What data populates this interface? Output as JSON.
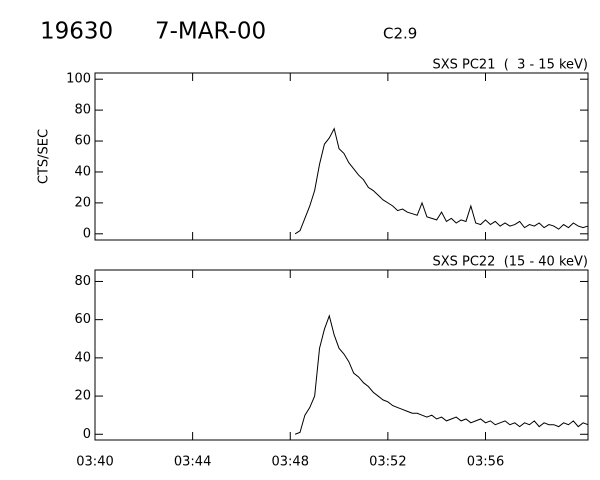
{
  "header": {
    "id": "19630",
    "date": "7-MAR-00",
    "class": "C2.9"
  },
  "chart_data": [
    {
      "type": "line",
      "title": "SXS PC21  (  3 - 15 keV)",
      "y_label": "CTS/SEC",
      "color": "#000000",
      "x": [
        48.2,
        48.4,
        48.6,
        48.8,
        49,
        49.2,
        49.4,
        49.6,
        49.8,
        50,
        50.2,
        50.4,
        50.6,
        50.8,
        51,
        51.2,
        51.4,
        51.6,
        51.8,
        52,
        52.2,
        52.4,
        52.6,
        52.8,
        53,
        53.2,
        53.4,
        53.6,
        53.8,
        54,
        54.2,
        54.4,
        54.6,
        54.8,
        55,
        55.2,
        55.4,
        55.6,
        55.8,
        56,
        56.2,
        56.4,
        56.6,
        56.8,
        57,
        57.2,
        57.4,
        57.6,
        57.8,
        58,
        58.2,
        58.4,
        58.6,
        58.8,
        59,
        59.2,
        59.4,
        59.6,
        59.8,
        60,
        60.2
      ],
      "values": [
        0,
        2,
        10,
        18,
        28,
        45,
        58,
        62,
        68,
        55,
        52,
        46,
        42,
        38,
        35,
        30,
        28,
        25,
        22,
        20,
        18,
        15,
        16,
        14,
        13,
        12,
        20,
        11,
        10,
        9,
        14,
        8,
        10,
        7,
        9,
        8,
        18,
        7,
        6,
        9,
        6,
        8,
        5,
        7,
        5,
        6,
        8,
        4,
        6,
        5,
        7,
        4,
        6,
        5,
        3,
        6,
        4,
        7,
        5,
        4,
        5
      ],
      "xlim": [
        40,
        60.2
      ],
      "ylim": [
        -4,
        104
      ],
      "yticks": [
        0,
        20,
        40,
        60,
        80,
        100
      ]
    },
    {
      "type": "line",
      "title": "SXS PC22  (15 - 40 keV)",
      "color": "#000000",
      "x": [
        48.2,
        48.4,
        48.6,
        48.8,
        49,
        49.2,
        49.4,
        49.6,
        49.8,
        50,
        50.2,
        50.4,
        50.6,
        50.8,
        51,
        51.2,
        51.4,
        51.6,
        51.8,
        52,
        52.2,
        52.4,
        52.6,
        52.8,
        53,
        53.2,
        53.4,
        53.6,
        53.8,
        54,
        54.2,
        54.4,
        54.6,
        54.8,
        55,
        55.2,
        55.4,
        55.6,
        55.8,
        56,
        56.2,
        56.4,
        56.6,
        56.8,
        57,
        57.2,
        57.4,
        57.6,
        57.8,
        58,
        58.2,
        58.4,
        58.6,
        58.8,
        59,
        59.2,
        59.4,
        59.6,
        59.8,
        60,
        60.2
      ],
      "values": [
        0,
        1,
        10,
        14,
        20,
        45,
        55,
        62,
        52,
        45,
        42,
        38,
        32,
        30,
        27,
        25,
        22,
        20,
        18,
        17,
        15,
        14,
        13,
        12,
        11,
        11,
        10,
        9,
        10,
        8,
        9,
        7,
        8,
        9,
        7,
        8,
        6,
        7,
        8,
        6,
        7,
        5,
        6,
        7,
        5,
        6,
        4,
        6,
        5,
        7,
        4,
        6,
        5,
        5,
        4,
        6,
        5,
        7,
        4,
        6,
        5
      ],
      "xlim": [
        40,
        60.2
      ],
      "ylim": [
        -3,
        86
      ],
      "yticks": [
        0,
        20,
        40,
        60,
        80
      ],
      "xticks": [
        {
          "value": 40,
          "label": "03:40"
        },
        {
          "value": 44,
          "label": "03:44"
        },
        {
          "value": 48,
          "label": "03:48"
        },
        {
          "value": 52,
          "label": "03:52"
        },
        {
          "value": 56,
          "label": "03:56"
        }
      ]
    }
  ]
}
